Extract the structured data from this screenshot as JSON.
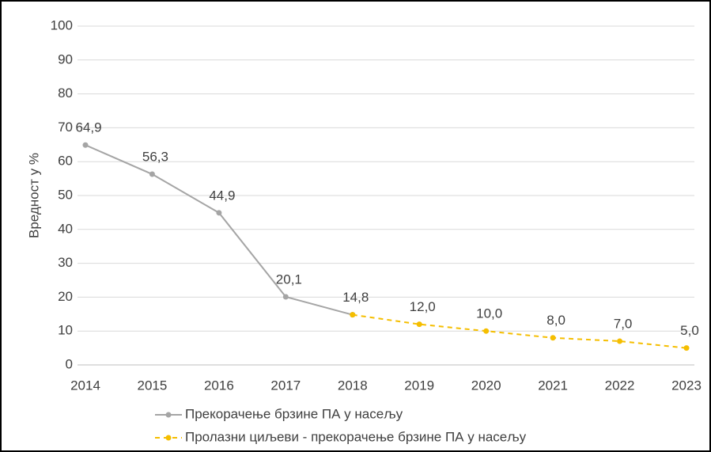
{
  "chart_data": {
    "type": "line",
    "y_label": "Вредност у %",
    "categories": [
      "2014",
      "2015",
      "2016",
      "2017",
      "2018",
      "2019",
      "2020",
      "2021",
      "2022",
      "2023"
    ],
    "series": [
      {
        "name": "Прекорачење брзине ПА у насељу",
        "color": "#a5a5a5",
        "line_style": "solid",
        "values": [
          64.9,
          56.3,
          44.9,
          20.1,
          14.8,
          null,
          null,
          null,
          null,
          null
        ],
        "value_labels": [
          "64,9",
          "56,3",
          "44,9",
          "20,1",
          "14,8",
          null,
          null,
          null,
          null,
          null
        ]
      },
      {
        "name": "Пролазни циљеви - прекорачење брзине ПА у насељу",
        "color": "#f5be00",
        "line_style": "dashed",
        "values": [
          null,
          null,
          null,
          null,
          14.8,
          12.0,
          10.0,
          8.0,
          7.0,
          5.0
        ],
        "value_labels": [
          null,
          null,
          null,
          null,
          null,
          "12,0",
          "10,0",
          "8,0",
          "7,0",
          "5,0"
        ]
      }
    ],
    "ylim": [
      0,
      100
    ],
    "yticks": [
      0,
      10,
      20,
      30,
      40,
      50,
      60,
      70,
      80,
      90,
      100
    ],
    "grid": true,
    "legend": "bottom"
  }
}
